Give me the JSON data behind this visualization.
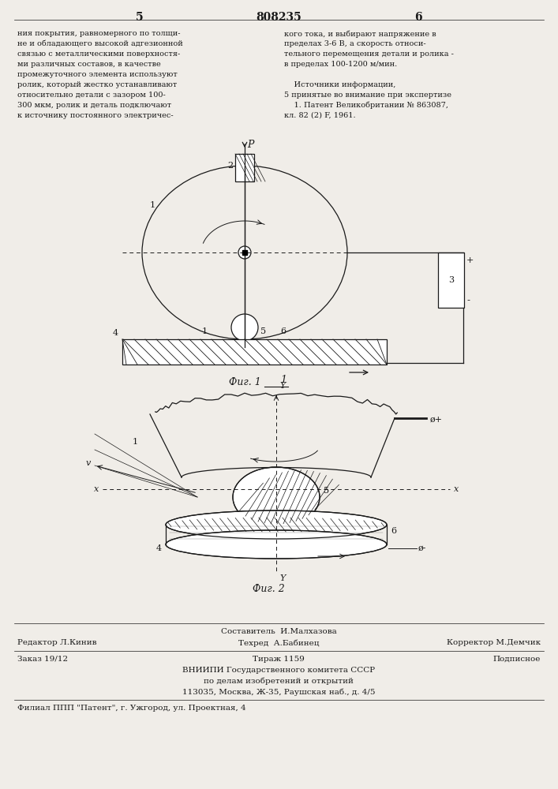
{
  "bg_color": "#f0ede8",
  "text_color": "#1a1a1a",
  "page_header": {
    "left_num": "5",
    "center_num": "808235",
    "right_num": "6"
  },
  "left_column_text": [
    "ния покрытия, равномерного по толщи-",
    "не и обладающего высокой адгезионной",
    "связью с металлическими поверхностя-",
    "ми различных составов, в качестве",
    "промежуточного элемента используют",
    "ролик, который жестко устанавливают",
    "относительно детали с зазором 100-",
    "300 мкм, ролик и деталь подключают",
    "к источнику постоянного электричес-"
  ],
  "right_column_text": [
    "кого тока, и выбирают напряжение в",
    "пределах 3-6 В, а скорость относи-",
    "тельного перемещения детали и ролика -",
    "в пределах 100-1200 м/мин.",
    "",
    "    Источники информации,",
    "5 принятые во внимание при экспертизе",
    "    1. Патент Великобритании № 863087,",
    "кл. 82 (2) F, 1961."
  ],
  "bottom_texts": {
    "line1_center": "Составитель  И.Малхазова",
    "line2_left": "Редактор Л.Кинив",
    "line2_center": "Техред  А.Бабинец",
    "line2_right": "Корректор М.Демчик",
    "line3_left": "Заказ 19/12",
    "line3_center": "Тираж 1159",
    "line3_right": "Подписное",
    "line4": "ВНИИПИ Государственного комитета СССР",
    "line5": "по делам изобретений и открытий",
    "line6": "113035, Москва, Ж-35, Раушская наб., д. 4/5",
    "line7": "Филиал ППП \"Патент\", г. Ужгород, ул. Проектная, 4"
  },
  "fig1_label": "Фиг. 1",
  "fig2_label": "Фиг. 2"
}
